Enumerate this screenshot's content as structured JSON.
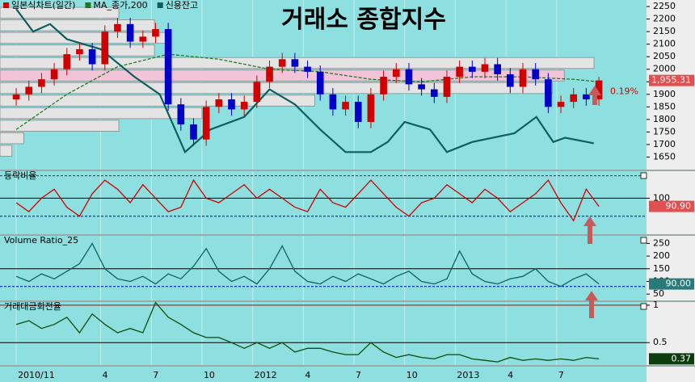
{
  "chart_data": [
    {
      "type": "candlestick",
      "title": "거래소 종합지수",
      "xlim": [
        -0.96,
        37.32
      ],
      "xticks": [
        {
          "value": 0,
          "label": "2010/11"
        },
        {
          "value": 5,
          "label": "4"
        },
        {
          "value": 8,
          "label": "7"
        },
        {
          "value": 11,
          "label": "10"
        },
        {
          "value": 14,
          "label": "2012"
        },
        {
          "value": 17,
          "label": "4"
        },
        {
          "value": 20,
          "label": "7"
        },
        {
          "value": 23,
          "label": "10"
        },
        {
          "value": 26,
          "label": "2013"
        },
        {
          "value": 29,
          "label": "4"
        },
        {
          "value": 32,
          "label": "7"
        }
      ],
      "ylim": [
        1600,
        2276
      ],
      "yticks": [
        1650,
        1700,
        1750,
        1800,
        1850,
        1900,
        1950,
        2000,
        2050,
        2100,
        2150,
        2200,
        2250
      ],
      "candles": {
        "name": "일본식차트(일간)",
        "up_color": "#d00000",
        "down_color": "#0000c8",
        "x": [
          0,
          0.75,
          1.5,
          2.25,
          3,
          3.75,
          4.5,
          5.25,
          6,
          6.75,
          7.5,
          8.25,
          9,
          9.75,
          10.5,
          11.25,
          12,
          12.75,
          13.5,
          14.25,
          15,
          15.75,
          16.5,
          17.25,
          18,
          18.75,
          19.5,
          20.25,
          21,
          21.75,
          22.5,
          23.25,
          24,
          24.75,
          25.5,
          26.25,
          27,
          27.75,
          28.5,
          29.25,
          30,
          30.75,
          31.5,
          32.25,
          33,
          33.75,
          34.5
        ],
        "open": [
          1880,
          1900,
          1930,
          1960,
          2000,
          2060,
          2080,
          2020,
          2150,
          2180,
          2110,
          2130,
          2160,
          1860,
          1780,
          1720,
          1850,
          1880,
          1840,
          1870,
          1950,
          2010,
          2040,
          2010,
          1990,
          1900,
          1840,
          1870,
          1790,
          1900,
          1970,
          2000,
          1940,
          1920,
          1890,
          1970,
          2010,
          1990,
          2020,
          1980,
          1930,
          2000,
          1960,
          1850,
          1870,
          1900,
          1880
        ],
        "high": [
          1925,
          1955,
          1985,
          2025,
          2085,
          2105,
          2105,
          2175,
          2205,
          2205,
          2155,
          2185,
          2185,
          1885,
          1805,
          1875,
          1905,
          1905,
          1895,
          1975,
          2035,
          2065,
          2065,
          2035,
          2015,
          1925,
          1895,
          1895,
          1925,
          1995,
          2025,
          2025,
          1965,
          1945,
          1995,
          2035,
          2035,
          2045,
          2045,
          2005,
          2025,
          2025,
          1985,
          1895,
          1925,
          1925,
          1970
        ],
        "low": [
          1855,
          1875,
          1905,
          1935,
          1975,
          2035,
          1995,
          1995,
          2125,
          2085,
          2085,
          2105,
          1835,
          1755,
          1695,
          1695,
          1825,
          1815,
          1815,
          1845,
          1925,
          1985,
          1985,
          1965,
          1875,
          1815,
          1815,
          1765,
          1765,
          1875,
          1945,
          1915,
          1895,
          1865,
          1865,
          1945,
          1965,
          1965,
          1955,
          1905,
          1905,
          1935,
          1825,
          1825,
          1845,
          1855,
          1855
        ],
        "close": [
          1900,
          1930,
          1960,
          2000,
          2060,
          2080,
          2020,
          2150,
          2180,
          2110,
          2130,
          2160,
          1860,
          1780,
          1720,
          1850,
          1880,
          1840,
          1870,
          1950,
          2010,
          2040,
          2010,
          1990,
          1900,
          1840,
          1870,
          1790,
          1900,
          1970,
          2000,
          1940,
          1920,
          1890,
          1970,
          2010,
          1990,
          2020,
          1980,
          1930,
          2000,
          1960,
          1850,
          1870,
          1900,
          1880,
          1955.31
        ]
      },
      "series": [
        {
          "name": "MA_종가,200",
          "color": "#1f7a1f",
          "dash": true,
          "x": [
            0,
            3,
            6,
            9,
            12,
            15,
            18,
            21,
            24,
            27,
            30,
            33,
            34.5
          ],
          "values": [
            1760,
            1900,
            2010,
            2060,
            2040,
            2000,
            1990,
            1960,
            1950,
            1970,
            1970,
            1960,
            1950
          ]
        },
        {
          "name": "신용잔고",
          "color": "#0d5e5e",
          "dash": false,
          "x": [
            0,
            1,
            2,
            3,
            5,
            7,
            8.5,
            10,
            11.5,
            13.5,
            15,
            16.5,
            18,
            19.5,
            21,
            22,
            23,
            24.5,
            25.5,
            27,
            29.5,
            30.8,
            31.8,
            32.5,
            34.2
          ],
          "values": [
            2240,
            2150,
            2180,
            2120,
            2080,
            1970,
            1900,
            1670,
            1760,
            1810,
            1920,
            1860,
            1760,
            1670,
            1670,
            1710,
            1790,
            1760,
            1670,
            1710,
            1745,
            1810,
            1710,
            1727,
            1705
          ]
        }
      ],
      "volume_profile": {
        "levels": [
          1650,
          1700,
          1750,
          1800,
          1850,
          1900,
          1950,
          2000,
          2050,
          2100,
          2150,
          2200
        ],
        "values": [
          2,
          4,
          20,
          34,
          53,
          93,
          95,
          100,
          26,
          28,
          26,
          20
        ],
        "colors": [
          "#e4e4e4",
          "#e4e4e4",
          "#e4e4e4",
          "#e4e4e4",
          "#e4e4e4",
          "#e4e4e4",
          "#f3c4d8",
          "#e4e4e4",
          "#e4e4e4",
          "#e4e4e4",
          "#e4e4e4",
          "#e4e4e4"
        ]
      },
      "last_label": {
        "value": 1955.31,
        "label": "1,955.31"
      },
      "change_label": "0.19%"
    },
    {
      "type": "line",
      "title": "등락비율",
      "color": "#d40000",
      "x": [
        0,
        0.75,
        1.5,
        2.25,
        3,
        3.75,
        4.5,
        5.25,
        6,
        6.75,
        7.5,
        8.25,
        9,
        9.75,
        10.5,
        11.25,
        12,
        12.75,
        13.5,
        14.25,
        15,
        15.75,
        16.5,
        17.25,
        18,
        18.75,
        19.5,
        20.25,
        21,
        21.75,
        22.5,
        23.25,
        24,
        24.75,
        25.5,
        26.25,
        27,
        27.75,
        28.5,
        29.25,
        30,
        30.75,
        31.5,
        32.25,
        33,
        33.75,
        34.5
      ],
      "values": [
        95,
        85,
        100,
        110,
        90,
        80,
        105,
        120,
        110,
        95,
        115,
        100,
        85,
        90,
        120,
        100,
        95,
        105,
        115,
        100,
        110,
        100,
        90,
        85,
        110,
        95,
        90,
        105,
        120,
        105,
        90,
        80,
        95,
        100,
        115,
        105,
        95,
        110,
        100,
        85,
        95,
        105,
        120,
        95,
        75,
        110,
        90.9
      ],
      "ylim": [
        60,
        130
      ],
      "yticks": [
        100
      ],
      "log": false,
      "ref_lines": [
        {
          "value": 125,
          "color": "#c00000",
          "dash": true
        },
        {
          "value": 100,
          "color": "#000000",
          "dash": false
        },
        {
          "value": 80,
          "color": "#0000cc",
          "dash": true
        }
      ],
      "last_label": {
        "value": 90.9,
        "label": "90.90"
      }
    },
    {
      "type": "line",
      "title": "Volume Ratio_25",
      "color": "#0a6464",
      "x": [
        0,
        0.75,
        1.5,
        2.25,
        3,
        3.75,
        4.5,
        5.25,
        6,
        6.75,
        7.5,
        8.25,
        9,
        9.75,
        10.5,
        11.25,
        12,
        12.75,
        13.5,
        14.25,
        15,
        15.75,
        16.5,
        17.25,
        18,
        18.75,
        19.5,
        20.25,
        21,
        21.75,
        22.5,
        23.25,
        24,
        24.75,
        25.5,
        26.25,
        27,
        27.75,
        28.5,
        29.25,
        30,
        30.75,
        31.5,
        32.25,
        33,
        33.75,
        34.5
      ],
      "values": [
        120,
        100,
        130,
        110,
        140,
        170,
        250,
        150,
        110,
        100,
        120,
        90,
        130,
        110,
        160,
        230,
        140,
        100,
        120,
        90,
        150,
        240,
        140,
        100,
        90,
        120,
        100,
        130,
        110,
        90,
        120,
        140,
        100,
        90,
        110,
        220,
        130,
        100,
        90,
        110,
        120,
        150,
        100,
        80,
        110,
        130,
        90
      ],
      "ylim": [
        25,
        280
      ],
      "yticks": [
        250,
        200,
        150,
        100,
        50
      ],
      "log": false,
      "ref_lines": [
        {
          "value": 150,
          "color": "#000000",
          "dash": false
        },
        {
          "value": 80,
          "color": "#0000cc",
          "dash": true
        }
      ],
      "last_label": {
        "value": 90,
        "label": "90.00"
      }
    },
    {
      "type": "line",
      "title": "거래대금회전율",
      "color": "#0a4d0a",
      "x": [
        0,
        0.75,
        1.5,
        2.25,
        3,
        3.75,
        4.5,
        5.25,
        6,
        6.75,
        7.5,
        8.25,
        9,
        9.75,
        10.5,
        11.25,
        12,
        12.75,
        13.5,
        14.25,
        15,
        15.75,
        16.5,
        17.25,
        18,
        18.75,
        19.5,
        20.25,
        21,
        21.75,
        22.5,
        23.25,
        24,
        24.75,
        25.5,
        26.25,
        27,
        27.75,
        28.5,
        29.25,
        30,
        30.75,
        31.5,
        32.25,
        33,
        33.75,
        34.5
      ],
      "values": [
        0.7,
        0.75,
        0.65,
        0.7,
        0.8,
        0.6,
        0.85,
        0.7,
        0.6,
        0.65,
        0.6,
        1.05,
        0.8,
        0.7,
        0.6,
        0.55,
        0.55,
        0.5,
        0.45,
        0.5,
        0.45,
        0.5,
        0.42,
        0.45,
        0.45,
        0.42,
        0.4,
        0.4,
        0.5,
        0.42,
        0.38,
        0.4,
        0.38,
        0.37,
        0.4,
        0.4,
        0.37,
        0.36,
        0.35,
        0.38,
        0.36,
        0.37,
        0.36,
        0.37,
        0.36,
        0.38,
        0.37
      ],
      "ylim": [
        0.33,
        1.06
      ],
      "yticks": [
        1,
        0.5
      ],
      "log": true,
      "ref_lines": [
        {
          "value": 1,
          "color": "#c00000",
          "dash": false
        },
        {
          "value": 0.5,
          "color": "#000000",
          "dash": false
        }
      ],
      "last_label": {
        "value": 0.37,
        "label": "0.37"
      }
    }
  ]
}
